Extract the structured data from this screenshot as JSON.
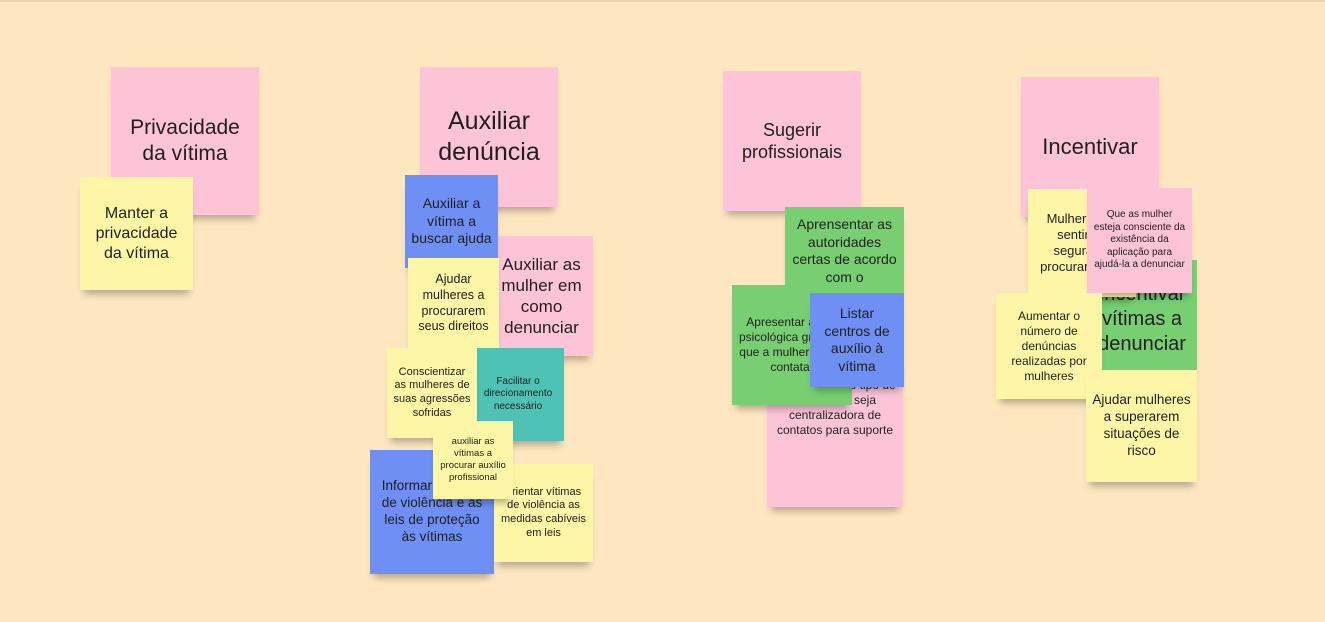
{
  "board": {
    "background_color": "#fde6c0",
    "note_colors": {
      "pink": "#fdc4d8",
      "yellow": "#fdf6a6",
      "blue": "#6e8ff3",
      "green": "#77cf71",
      "teal": "#4fc2b6"
    }
  },
  "notes": {
    "privacidade": "Privacidade da vítima",
    "manter_privacidade": "Manter a privacidade da vítima",
    "auxiliar_denuncia": "Auxiliar denúncia",
    "auxiliar_buscar_ajuda": "Auxiliar a vítima a buscar ajuda",
    "auxiliar_mulher_denunciar": "Auxiliar as mulher em como denunciar",
    "ajudar_direitos": "Ajudar mulheres a procurarem seus direitos",
    "conscientizar": "Conscientizar as mulheres de suas agressões sofridas",
    "facilitar": "Facilitar o direcionamento necessário",
    "auxiliar_profissional": "auxiliar as vítimas a procurar auxílio profissional",
    "informar_tipos": "Informar os tipos de violência e as leis de proteção às vítimas",
    "orientar": "orientar vítimas de violência as medidas cabíveis em leis",
    "sugerir": "Sugerir profissionais",
    "apresentar_autoridades": "Aprensentar as autoridades certas de acordo com o",
    "apresentar_ajuda": "Apresentar ajuda psicológica gratutita que a mulher possa contatar",
    "listar_centros": "Listar centros de auxílio à vítima",
    "plataforma": "Ter uma plataforma que classifica o tipo de violência e seja centralizadora de contatos para suporte",
    "incentivar": "Incentivar",
    "mulheres_sentirem": "Mulheres se sentirem seguras a procurar ajuda",
    "que_as_mulher": "Que as mulher esteja consciente da existência da aplicação para ajudá-la a denunciar",
    "incentivar_vitimas": "Incentivar vítimas a denunciar",
    "aumentar_denuncias": "Aumentar o número de denúncias realizadas por mulheres",
    "ajudar_superarem": "Ajudar mulheres a superarem situações de risco"
  }
}
